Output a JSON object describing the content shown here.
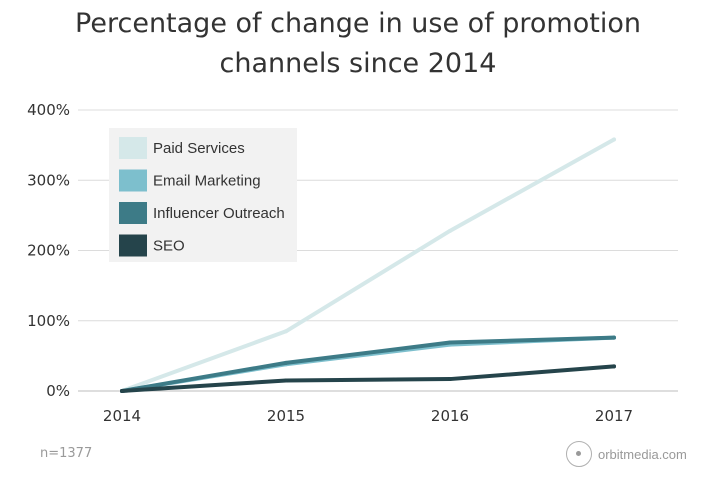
{
  "title_line1": "Percentage of change in use of promotion",
  "title_line2": "channels since 2014",
  "footnote": "n=1377",
  "brand": {
    "text": "orbitmedia.com",
    "icon": "orbit-logo-icon"
  },
  "chart_data": {
    "type": "line",
    "title": "Percentage of change in use of promotion channels since 2014",
    "x": [
      "2014",
      "2015",
      "2016",
      "2017"
    ],
    "ylim": [
      0,
      400
    ],
    "yticks": [
      0,
      100,
      200,
      300,
      400
    ],
    "ytick_labels": [
      "0%",
      "100%",
      "200%",
      "300%",
      "400%"
    ],
    "grid": true,
    "legend_position": "top-left",
    "series": [
      {
        "name": "Paid Services",
        "color": "#d5e8e9",
        "values": [
          0,
          85,
          228,
          358
        ]
      },
      {
        "name": "Email Marketing",
        "color": "#7dbfcd",
        "values": [
          0,
          38,
          66,
          76
        ]
      },
      {
        "name": "Influencer Outreach",
        "color": "#3d7b87",
        "values": [
          0,
          40,
          69,
          76
        ]
      },
      {
        "name": "SEO",
        "color": "#25444b",
        "values": [
          0,
          15,
          17,
          35
        ]
      }
    ]
  }
}
